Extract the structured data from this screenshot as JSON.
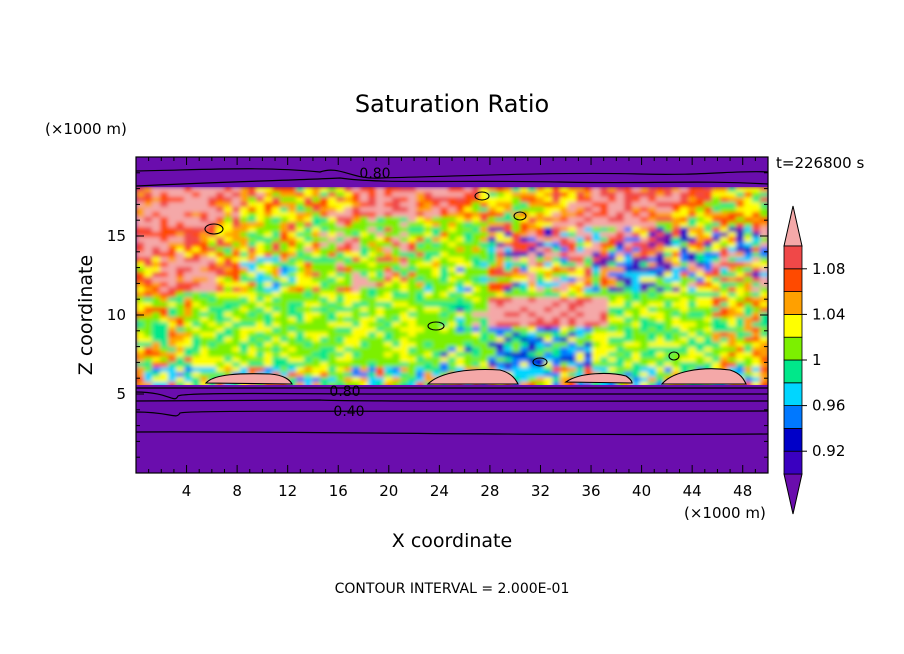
{
  "chart_data": {
    "type": "heatmap",
    "title": "Saturation Ratio",
    "xlabel": "X coordinate",
    "ylabel": "Z coordinate",
    "x_unit": "(×1000 m)",
    "y_unit": "(×1000 m)",
    "time_label": "t=226800 s",
    "footer": "CONTOUR INTERVAL = 2.000E-01",
    "xlim": [
      0,
      50
    ],
    "ylim": [
      0,
      20
    ],
    "x_ticks": [
      "4",
      "8",
      "12",
      "16",
      "20",
      "24",
      "28",
      "32",
      "36",
      "40",
      "44",
      "48"
    ],
    "y_ticks": [
      "5",
      "10",
      "15"
    ],
    "colorbar": {
      "labels": [
        "0.92",
        "0.96",
        "1",
        "1.04",
        "1.08"
      ],
      "levels": [
        0.9,
        0.92,
        0.94,
        0.96,
        0.98,
        1.0,
        1.02,
        1.04,
        1.06,
        1.08,
        1.1
      ],
      "colors": [
        "#6a0dad",
        "#3a00c0",
        "#0000c8",
        "#0078ff",
        "#00d6ff",
        "#00e88a",
        "#7cf000",
        "#ffff00",
        "#ffa000",
        "#ff4a00",
        "#f04848",
        "#f4a8a8"
      ],
      "extend": "both"
    },
    "contour_labels": [
      "0.80",
      "0.80",
      "0.40"
    ],
    "grid": false
  }
}
